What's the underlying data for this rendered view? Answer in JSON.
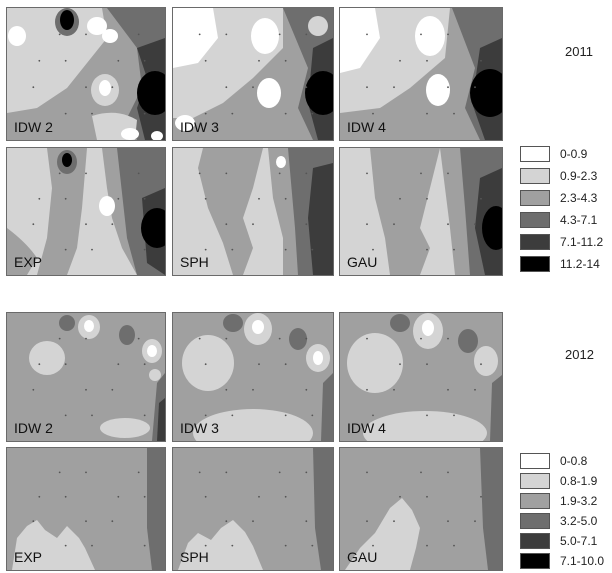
{
  "years": {
    "top": "2011",
    "bottom": "2012"
  },
  "panels_2011": [
    {
      "label": "IDW 2"
    },
    {
      "label": "IDW 3"
    },
    {
      "label": "IDW 4"
    },
    {
      "label": "EXP"
    },
    {
      "label": "SPH"
    },
    {
      "label": "GAU"
    }
  ],
  "panels_2012": [
    {
      "label": "IDW 2"
    },
    {
      "label": "IDW 3"
    },
    {
      "label": "IDW 4"
    },
    {
      "label": "EXP"
    },
    {
      "label": "SPH"
    },
    {
      "label": "GAU"
    }
  ],
  "legend_2011": [
    {
      "range": "0-0.9",
      "color": "#ffffff"
    },
    {
      "range": "0.9-2.3",
      "color": "#d4d4d4"
    },
    {
      "range": "2.3-4.3",
      "color": "#a0a0a0"
    },
    {
      "range": "4.3-7.1",
      "color": "#6e6e6e"
    },
    {
      "range": "7.1-11.2",
      "color": "#3c3c3c"
    },
    {
      "range": "11.2-14",
      "color": "#000000"
    }
  ],
  "legend_2012": [
    {
      "range": "0-0.8",
      "color": "#ffffff"
    },
    {
      "range": "0.8-1.9",
      "color": "#d4d4d4"
    },
    {
      "range": "1.9-3.2",
      "color": "#a0a0a0"
    },
    {
      "range": "3.2-5.0",
      "color": "#6e6e6e"
    },
    {
      "range": "5.0-7.1",
      "color": "#3c3c3c"
    },
    {
      "range": "7.1-10.0",
      "color": "#000000"
    }
  ]
}
